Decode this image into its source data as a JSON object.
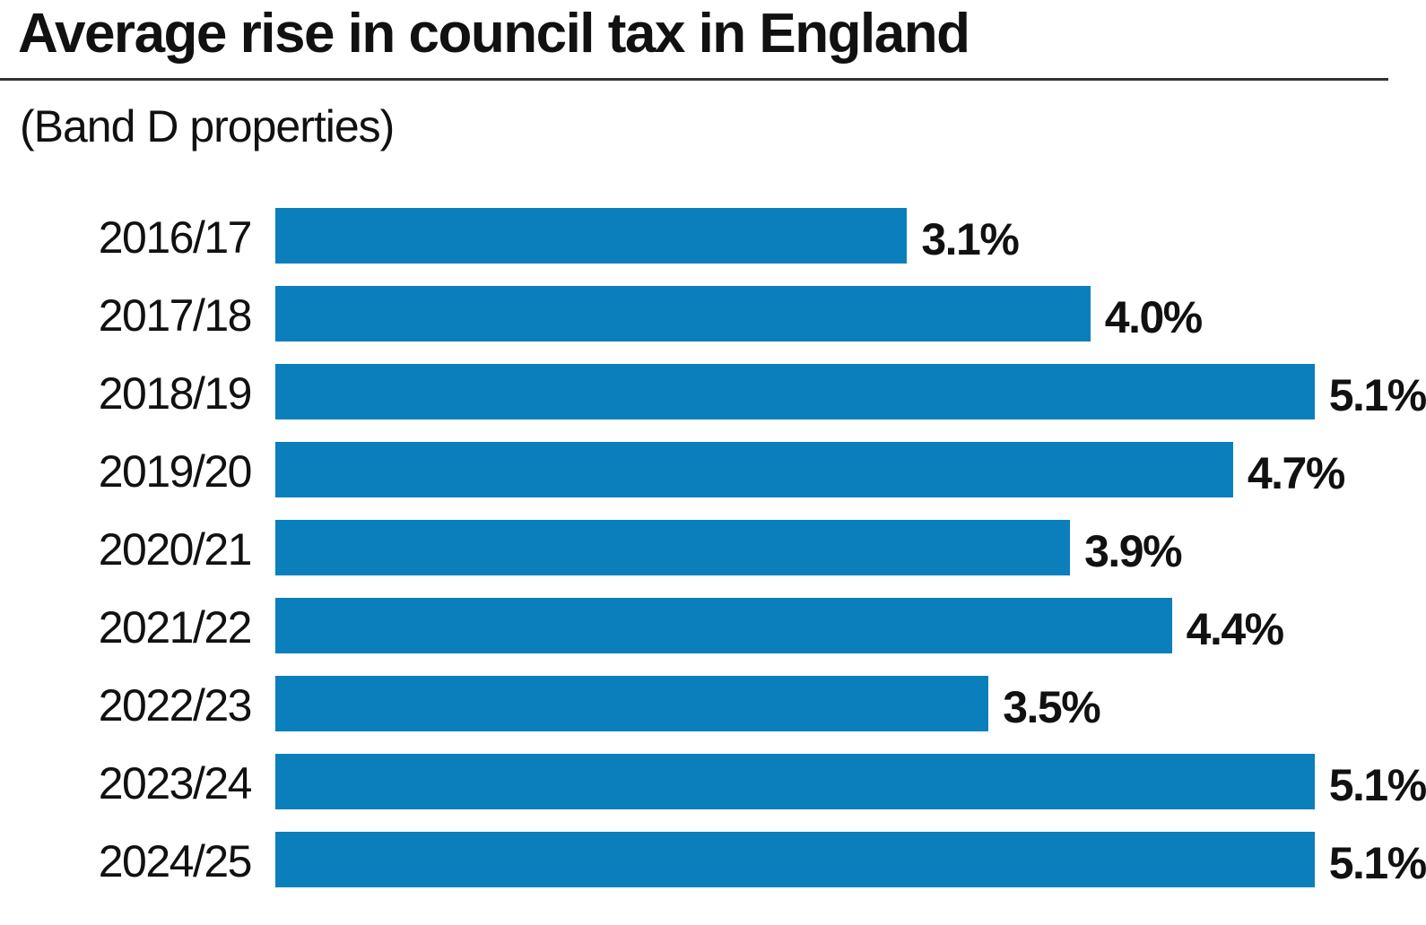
{
  "chart_data": {
    "type": "bar",
    "orientation": "horizontal",
    "title": "Average rise in council tax in England",
    "subtitle": "(Band D properties)",
    "categories": [
      "2016/17",
      "2017/18",
      "2018/19",
      "2019/20",
      "2020/21",
      "2021/22",
      "2022/23",
      "2023/24",
      "2024/25"
    ],
    "values": [
      3.1,
      4.0,
      5.1,
      4.7,
      3.9,
      4.4,
      3.5,
      5.1,
      5.1
    ],
    "data_labels": [
      "3.1%",
      "4.0%",
      "5.1%",
      "4.7%",
      "3.9%",
      "4.4%",
      "3.5%",
      "5.1%",
      "5.1%"
    ],
    "unit": "%",
    "xlim": [
      0,
      5.1
    ],
    "grid": false,
    "bar_color": "#0a7fbc"
  }
}
